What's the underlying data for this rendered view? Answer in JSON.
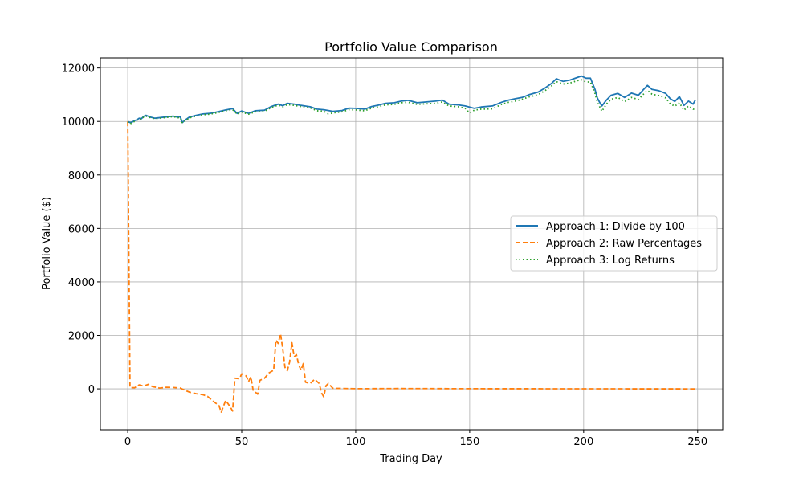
{
  "chart_data": {
    "type": "line",
    "title": "Portfolio Value Comparison",
    "xlabel": "Trading Day",
    "ylabel": "Portfolio Value ($)",
    "xlim": [
      -12,
      261
    ],
    "ylim": [
      -1530,
      12380
    ],
    "x_ticks": [
      0,
      50,
      100,
      150,
      200,
      250
    ],
    "y_ticks": [
      0,
      2000,
      4000,
      6000,
      8000,
      10000,
      12000
    ],
    "grid": true,
    "legend_position": "center-right",
    "series": [
      {
        "name": "Approach 1: Divide by 100",
        "color": "#1f77b4",
        "style": "solid",
        "points": [
          [
            0,
            10000
          ],
          [
            1,
            9960
          ],
          [
            2,
            9980
          ],
          [
            3,
            10030
          ],
          [
            4,
            10060
          ],
          [
            5,
            10120
          ],
          [
            6,
            10100
          ],
          [
            7,
            10190
          ],
          [
            8,
            10230
          ],
          [
            10,
            10160
          ],
          [
            12,
            10120
          ],
          [
            15,
            10150
          ],
          [
            18,
            10180
          ],
          [
            20,
            10200
          ],
          [
            22,
            10160
          ],
          [
            23,
            10180
          ],
          [
            24,
            9960
          ],
          [
            25,
            10040
          ],
          [
            27,
            10160
          ],
          [
            30,
            10230
          ],
          [
            33,
            10280
          ],
          [
            36,
            10300
          ],
          [
            40,
            10370
          ],
          [
            43,
            10430
          ],
          [
            46,
            10480
          ],
          [
            48,
            10300
          ],
          [
            50,
            10390
          ],
          [
            53,
            10300
          ],
          [
            56,
            10400
          ],
          [
            60,
            10420
          ],
          [
            63,
            10560
          ],
          [
            66,
            10650
          ],
          [
            68,
            10590
          ],
          [
            70,
            10680
          ],
          [
            73,
            10650
          ],
          [
            76,
            10600
          ],
          [
            80,
            10550
          ],
          [
            83,
            10460
          ],
          [
            86,
            10440
          ],
          [
            90,
            10380
          ],
          [
            94,
            10410
          ],
          [
            97,
            10500
          ],
          [
            100,
            10490
          ],
          [
            104,
            10460
          ],
          [
            107,
            10560
          ],
          [
            110,
            10610
          ],
          [
            113,
            10680
          ],
          [
            117,
            10700
          ],
          [
            120,
            10760
          ],
          [
            123,
            10790
          ],
          [
            127,
            10700
          ],
          [
            131,
            10730
          ],
          [
            135,
            10760
          ],
          [
            138,
            10800
          ],
          [
            141,
            10650
          ],
          [
            145,
            10620
          ],
          [
            148,
            10580
          ],
          [
            152,
            10490
          ],
          [
            155,
            10540
          ],
          [
            160,
            10580
          ],
          [
            164,
            10720
          ],
          [
            167,
            10800
          ],
          [
            170,
            10850
          ],
          [
            173,
            10900
          ],
          [
            176,
            11000
          ],
          [
            180,
            11100
          ],
          [
            183,
            11250
          ],
          [
            186,
            11430
          ],
          [
            188,
            11600
          ],
          [
            191,
            11500
          ],
          [
            194,
            11550
          ],
          [
            197,
            11640
          ],
          [
            199,
            11700
          ],
          [
            201,
            11620
          ],
          [
            203,
            11620
          ],
          [
            205,
            11200
          ],
          [
            206,
            10880
          ],
          [
            207,
            10720
          ],
          [
            208,
            10580
          ],
          [
            210,
            10800
          ],
          [
            212,
            10980
          ],
          [
            215,
            11050
          ],
          [
            218,
            10900
          ],
          [
            221,
            11060
          ],
          [
            224,
            10980
          ],
          [
            226,
            11170
          ],
          [
            228,
            11350
          ],
          [
            230,
            11200
          ],
          [
            233,
            11150
          ],
          [
            236,
            11050
          ],
          [
            238,
            10850
          ],
          [
            240,
            10750
          ],
          [
            242,
            10930
          ],
          [
            244,
            10600
          ],
          [
            246,
            10760
          ],
          [
            248,
            10650
          ],
          [
            249,
            10800
          ]
        ]
      },
      {
        "name": "Approach 2: Raw Percentages",
        "color": "#ff7f0e",
        "style": "dashed",
        "points": [
          [
            0,
            10000
          ],
          [
            1,
            50
          ],
          [
            3,
            40
          ],
          [
            5,
            150
          ],
          [
            7,
            100
          ],
          [
            9,
            170
          ],
          [
            11,
            80
          ],
          [
            14,
            30
          ],
          [
            17,
            60
          ],
          [
            20,
            50
          ],
          [
            23,
            30
          ],
          [
            25,
            -50
          ],
          [
            27,
            -120
          ],
          [
            30,
            -180
          ],
          [
            33,
            -220
          ],
          [
            35,
            -280
          ],
          [
            38,
            -500
          ],
          [
            40,
            -620
          ],
          [
            41,
            -870
          ],
          [
            42,
            -650
          ],
          [
            43,
            -430
          ],
          [
            45,
            -680
          ],
          [
            46,
            -830
          ],
          [
            47,
            400
          ],
          [
            49,
            380
          ],
          [
            50,
            560
          ],
          [
            51,
            530
          ],
          [
            52,
            480
          ],
          [
            53,
            270
          ],
          [
            54,
            450
          ],
          [
            55,
            -50
          ],
          [
            57,
            -200
          ],
          [
            58,
            320
          ],
          [
            60,
            400
          ],
          [
            62,
            600
          ],
          [
            64,
            700
          ],
          [
            65,
            1820
          ],
          [
            66,
            1700
          ],
          [
            67,
            2060
          ],
          [
            68,
            1500
          ],
          [
            69,
            800
          ],
          [
            70,
            680
          ],
          [
            71,
            1000
          ],
          [
            72,
            1730
          ],
          [
            73,
            1200
          ],
          [
            74,
            1280
          ],
          [
            75,
            900
          ],
          [
            76,
            700
          ],
          [
            77,
            950
          ],
          [
            78,
            250
          ],
          [
            80,
            200
          ],
          [
            82,
            360
          ],
          [
            84,
            200
          ],
          [
            85,
            -150
          ],
          [
            86,
            -300
          ],
          [
            87,
            120
          ],
          [
            88,
            200
          ],
          [
            90,
            20
          ],
          [
            100,
            5
          ],
          [
            120,
            10
          ],
          [
            150,
            5
          ],
          [
            200,
            2
          ],
          [
            249,
            0
          ]
        ]
      },
      {
        "name": "Approach 3: Log Returns",
        "color": "#2ca02c",
        "style": "dotted",
        "points": [
          [
            0,
            9980
          ],
          [
            1,
            9900
          ],
          [
            2,
            9960
          ],
          [
            3,
            10000
          ],
          [
            4,
            10040
          ],
          [
            5,
            10100
          ],
          [
            6,
            10080
          ],
          [
            7,
            10170
          ],
          [
            8,
            10200
          ],
          [
            10,
            10140
          ],
          [
            12,
            10100
          ],
          [
            15,
            10130
          ],
          [
            18,
            10160
          ],
          [
            20,
            10180
          ],
          [
            22,
            10140
          ],
          [
            23,
            10150
          ],
          [
            24,
            9940
          ],
          [
            25,
            10010
          ],
          [
            27,
            10130
          ],
          [
            30,
            10200
          ],
          [
            33,
            10250
          ],
          [
            36,
            10270
          ],
          [
            40,
            10340
          ],
          [
            43,
            10400
          ],
          [
            46,
            10440
          ],
          [
            48,
            10270
          ],
          [
            50,
            10350
          ],
          [
            53,
            10270
          ],
          [
            56,
            10360
          ],
          [
            60,
            10380
          ],
          [
            63,
            10520
          ],
          [
            66,
            10610
          ],
          [
            68,
            10550
          ],
          [
            70,
            10630
          ],
          [
            73,
            10600
          ],
          [
            76,
            10560
          ],
          [
            80,
            10510
          ],
          [
            83,
            10400
          ],
          [
            86,
            10380
          ],
          [
            88,
            10280
          ],
          [
            90,
            10320
          ],
          [
            94,
            10360
          ],
          [
            97,
            10440
          ],
          [
            100,
            10430
          ],
          [
            104,
            10400
          ],
          [
            107,
            10500
          ],
          [
            110,
            10550
          ],
          [
            113,
            10620
          ],
          [
            117,
            10640
          ],
          [
            120,
            10700
          ],
          [
            123,
            10720
          ],
          [
            127,
            10640
          ],
          [
            131,
            10660
          ],
          [
            135,
            10680
          ],
          [
            138,
            10730
          ],
          [
            141,
            10580
          ],
          [
            145,
            10550
          ],
          [
            148,
            10490
          ],
          [
            150,
            10320
          ],
          [
            152,
            10420
          ],
          [
            155,
            10460
          ],
          [
            160,
            10470
          ],
          [
            164,
            10640
          ],
          [
            167,
            10720
          ],
          [
            170,
            10760
          ],
          [
            173,
            10830
          ],
          [
            176,
            10920
          ],
          [
            180,
            11000
          ],
          [
            183,
            11150
          ],
          [
            186,
            11330
          ],
          [
            188,
            11490
          ],
          [
            191,
            11400
          ],
          [
            194,
            11440
          ],
          [
            197,
            11520
          ],
          [
            199,
            11560
          ],
          [
            201,
            11480
          ],
          [
            203,
            11480
          ],
          [
            205,
            11050
          ],
          [
            206,
            10720
          ],
          [
            207,
            10560
          ],
          [
            208,
            10380
          ],
          [
            210,
            10650
          ],
          [
            212,
            10830
          ],
          [
            215,
            10900
          ],
          [
            218,
            10740
          ],
          [
            221,
            10900
          ],
          [
            224,
            10820
          ],
          [
            226,
            11000
          ],
          [
            228,
            11160
          ],
          [
            230,
            11020
          ],
          [
            233,
            10970
          ],
          [
            236,
            10880
          ],
          [
            238,
            10660
          ],
          [
            240,
            10570
          ],
          [
            242,
            10700
          ],
          [
            244,
            10420
          ],
          [
            246,
            10580
          ],
          [
            248,
            10460
          ],
          [
            249,
            10450
          ]
        ]
      }
    ]
  }
}
